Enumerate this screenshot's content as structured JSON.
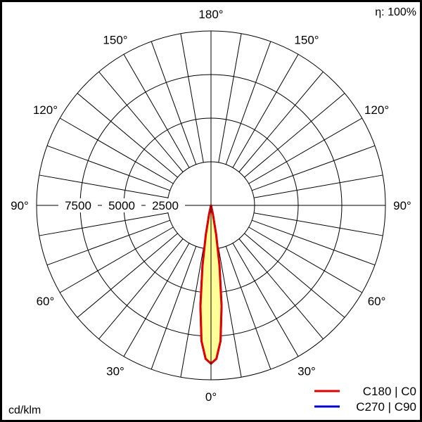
{
  "chart_data": {
    "type": "polar",
    "unit_label": "cd/klm",
    "efficiency_label": "η: 100%",
    "radial_ticks": [
      2500,
      5000,
      7500
    ],
    "radial_max": 10000,
    "angle_labels": [
      {
        "angle": 180,
        "text": "180°"
      },
      {
        "angle": 150,
        "text": "150°"
      },
      {
        "angle": 120,
        "text": "120°"
      },
      {
        "angle": 90,
        "text": "90°"
      },
      {
        "angle": 60,
        "text": "60°"
      },
      {
        "angle": 30,
        "text": "30°"
      },
      {
        "angle": 0,
        "text": "0°"
      }
    ],
    "grid_step_deg": 10,
    "series": [
      {
        "name": "C180 | C0",
        "color": "#e00000",
        "fill": "#ffff99",
        "angles": [
          0,
          2,
          4,
          6,
          8,
          10,
          12,
          14
        ],
        "values": [
          9070,
          8800,
          7800,
          5800,
          3500,
          1700,
          500,
          0
        ]
      },
      {
        "name": "C270 | C90",
        "color": "#0000cc",
        "angles": [
          0,
          2,
          4,
          6,
          8,
          10,
          12,
          14
        ],
        "values": [
          9070,
          8800,
          7800,
          5800,
          3500,
          1700,
          500,
          0
        ]
      }
    ]
  }
}
